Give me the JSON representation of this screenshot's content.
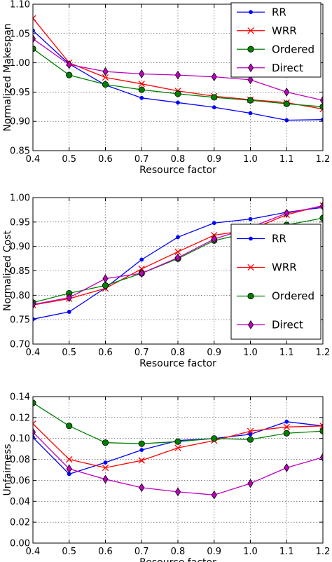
{
  "chart_data": [
    {
      "type": "line",
      "xlabel": "Resource factor",
      "ylabel": "Normalized Makespan",
      "xlim": [
        0.4,
        1.2
      ],
      "ylim": [
        0.85,
        1.1
      ],
      "xticks": [
        "0.4",
        "0.5",
        "0.6",
        "0.7",
        "0.8",
        "0.9",
        "1.0",
        "1.1",
        "1.2"
      ],
      "yticks": [
        "0.85",
        "0.90",
        "0.95",
        "1.00",
        "1.05",
        "1.10"
      ],
      "grid": true,
      "legend_position": "top-right",
      "x": [
        0.4,
        0.5,
        0.6,
        0.7,
        0.8,
        0.9,
        1.0,
        1.1,
        1.2
      ],
      "series": [
        {
          "name": "RR",
          "color": "#0000ff",
          "marker": "dot",
          "values": [
            1.055,
            0.998,
            0.962,
            0.94,
            0.932,
            0.924,
            0.914,
            0.902,
            0.903
          ]
        },
        {
          "name": "WRR",
          "color": "#ff0000",
          "marker": "x",
          "values": [
            1.076,
            1.0,
            0.975,
            0.964,
            0.952,
            0.943,
            0.937,
            0.932,
            0.921
          ]
        },
        {
          "name": "Ordered",
          "color": "#008000",
          "marker": "circle",
          "values": [
            1.024,
            0.979,
            0.963,
            0.954,
            0.947,
            0.941,
            0.936,
            0.93,
            0.925
          ]
        },
        {
          "name": "Direct",
          "color": "#bf00bf",
          "marker": "diamond",
          "values": [
            1.041,
            0.997,
            0.985,
            0.981,
            0.979,
            0.976,
            0.971,
            0.95,
            0.936
          ]
        }
      ]
    },
    {
      "type": "line",
      "xlabel": "Resource factor",
      "ylabel": "Normalized Cost",
      "xlim": [
        0.4,
        1.2
      ],
      "ylim": [
        0.7,
        1.0
      ],
      "xticks": [
        "0.4",
        "0.5",
        "0.6",
        "0.7",
        "0.8",
        "0.9",
        "1.0",
        "1.1",
        "1.2"
      ],
      "yticks": [
        "0.70",
        "0.75",
        "0.80",
        "0.85",
        "0.90",
        "0.95",
        "1.00"
      ],
      "grid": true,
      "legend_position": "bottom-right",
      "x": [
        0.4,
        0.5,
        0.6,
        0.7,
        0.8,
        0.9,
        1.0,
        1.1,
        1.2
      ],
      "series": [
        {
          "name": "RR",
          "color": "#0000ff",
          "marker": "dot",
          "values": [
            0.751,
            0.766,
            0.815,
            0.873,
            0.919,
            0.948,
            0.956,
            0.97,
            0.98
          ]
        },
        {
          "name": "WRR",
          "color": "#ff0000",
          "marker": "x",
          "values": [
            0.78,
            0.793,
            0.814,
            0.854,
            0.889,
            0.923,
            0.934,
            0.965,
            0.984
          ]
        },
        {
          "name": "Ordered",
          "color": "#008000",
          "marker": "circle",
          "values": [
            0.785,
            0.804,
            0.82,
            0.845,
            0.875,
            0.912,
            0.929,
            0.944,
            0.958
          ]
        },
        {
          "name": "Direct",
          "color": "#bf00bf",
          "marker": "diamond",
          "values": [
            0.781,
            0.795,
            0.834,
            0.845,
            0.877,
            0.915,
            0.939,
            0.968,
            0.983
          ]
        }
      ]
    },
    {
      "type": "line",
      "xlabel": "Resource factor",
      "ylabel": "Unfairness",
      "xlim": [
        0.4,
        1.2
      ],
      "ylim": [
        0.0,
        0.14
      ],
      "xticks": [
        "0.4",
        "0.5",
        "0.6",
        "0.7",
        "0.8",
        "0.9",
        "1.0",
        "1.1",
        "1.2"
      ],
      "yticks": [
        "0.00",
        "0.02",
        "0.04",
        "0.06",
        "0.08",
        "0.10",
        "0.12",
        "0.14"
      ],
      "grid": true,
      "legend_position": "none",
      "x": [
        0.4,
        0.5,
        0.6,
        0.7,
        0.8,
        0.9,
        1.0,
        1.1,
        1.2
      ],
      "series": [
        {
          "name": "RR",
          "color": "#0000ff",
          "marker": "dot",
          "values": [
            0.101,
            0.066,
            0.077,
            0.089,
            0.098,
            0.1,
            0.104,
            0.116,
            0.112
          ]
        },
        {
          "name": "WRR",
          "color": "#ff0000",
          "marker": "x",
          "values": [
            0.114,
            0.08,
            0.072,
            0.079,
            0.091,
            0.098,
            0.107,
            0.111,
            0.112
          ]
        },
        {
          "name": "Ordered",
          "color": "#008000",
          "marker": "circle",
          "values": [
            0.134,
            0.112,
            0.096,
            0.095,
            0.097,
            0.1,
            0.099,
            0.105,
            0.107
          ]
        },
        {
          "name": "Direct",
          "color": "#bf00bf",
          "marker": "diamond",
          "values": [
            0.106,
            0.071,
            0.061,
            0.053,
            0.049,
            0.046,
            0.057,
            0.072,
            0.082
          ]
        }
      ]
    }
  ]
}
